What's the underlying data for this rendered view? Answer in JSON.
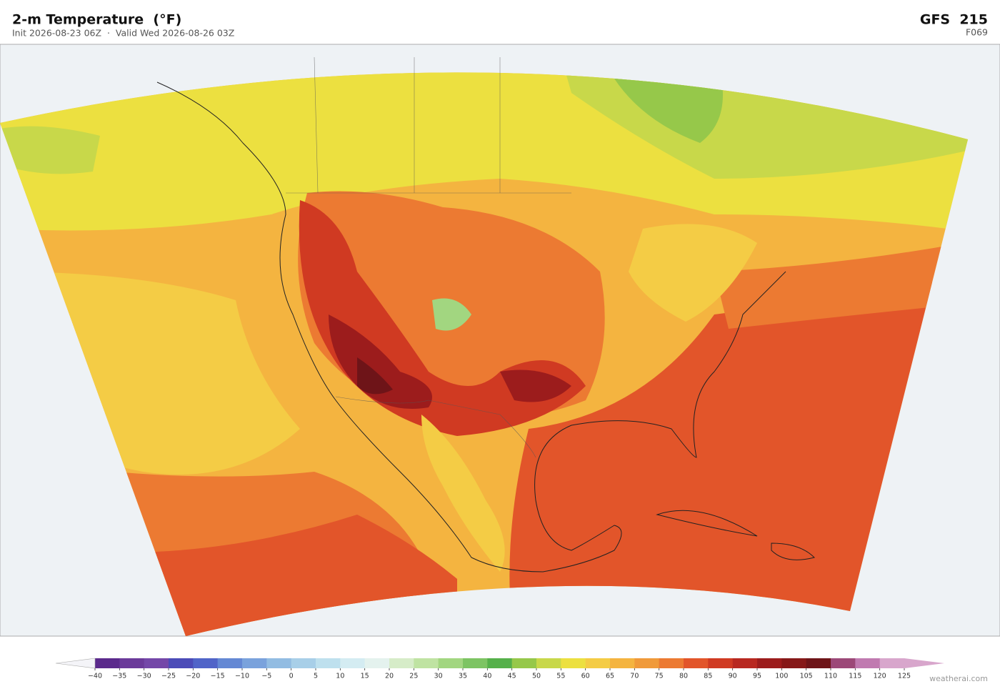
{
  "header": {
    "title": "2-m Temperature  (°F)",
    "subtitle": "Init 2026-08-23 06Z  ·  Valid Wed 2026-08-26 03Z",
    "model": "GFS  215",
    "forecast_hour": "F069"
  },
  "colorbar": {
    "ticks": [
      {
        "value": -40,
        "label": "−40"
      },
      {
        "value": -35,
        "label": "−35"
      },
      {
        "value": -30,
        "label": "−30"
      },
      {
        "value": -25,
        "label": "−25"
      },
      {
        "value": -20,
        "label": "−20"
      },
      {
        "value": -15,
        "label": "−15"
      },
      {
        "value": -10,
        "label": "−10"
      },
      {
        "value": -5,
        "label": "−5"
      },
      0,
      5,
      10,
      15,
      20,
      25,
      30,
      35,
      40,
      45,
      50,
      55,
      60,
      65,
      70,
      75,
      80,
      85,
      90,
      95,
      100,
      105,
      110,
      115,
      120,
      125
    ],
    "colors": [
      "#5b2a8c",
      "#6b3a9a",
      "#7447a8",
      "#4b4bb8",
      "#5064c8",
      "#6488d4",
      "#7aa2dc",
      "#92bce2",
      "#a8cfe8",
      "#bee0ee",
      "#d4ecf2",
      "#e4f2ee",
      "#d6ecc8",
      "#bfe3a2",
      "#a2d680",
      "#7dc463",
      "#55b04a",
      "#96c84a",
      "#c8d84a",
      "#ece040",
      "#f4cc45",
      "#f4b440",
      "#f09a3a",
      "#ec7a32",
      "#e2552a",
      "#d03a22",
      "#b82820",
      "#9c1c1c",
      "#861818",
      "#6e1418",
      "#9c4878",
      "#c07ab0",
      "#d8a6cc"
    ],
    "extend_low_color": "#f4f4f8",
    "extend_high_color": "#d8a6cc"
  },
  "footer": {
    "credit": "weatherai.com"
  }
}
